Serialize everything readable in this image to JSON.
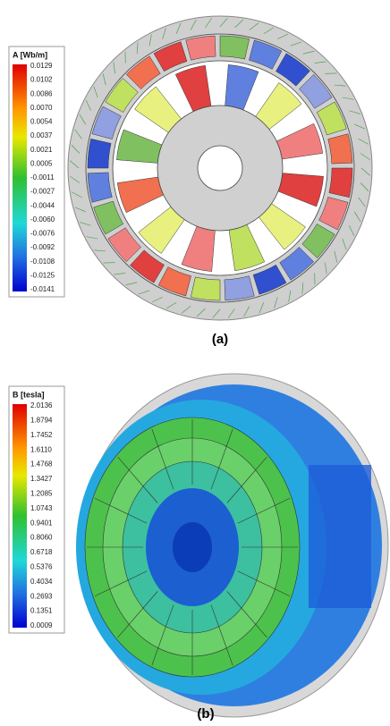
{
  "panel_a": {
    "legend_title": "A [Wb/m]",
    "legend_labels": [
      "0.0129",
      "0.0102",
      "0.0086",
      "0.0070",
      "0.0054",
      "0.0037",
      "0.0021",
      "0.0005",
      "-0.0011",
      "-0.0027",
      "-0.0044",
      "-0.0060",
      "-0.0076",
      "-0.0092",
      "-0.0108",
      "-0.0125",
      "-0.0141"
    ],
    "caption": "(a)"
  },
  "panel_b": {
    "legend_title": "B [tesla]",
    "legend_labels": [
      "2.0136",
      "1.8794",
      "1.7452",
      "1.6110",
      "1.4768",
      "1.3427",
      "1.2085",
      "1.0743",
      "0.9401",
      "0.8060",
      "0.6718",
      "0.5376",
      "0.4034",
      "0.2693",
      "0.1351",
      "0.0009"
    ],
    "caption": "(b)"
  }
}
